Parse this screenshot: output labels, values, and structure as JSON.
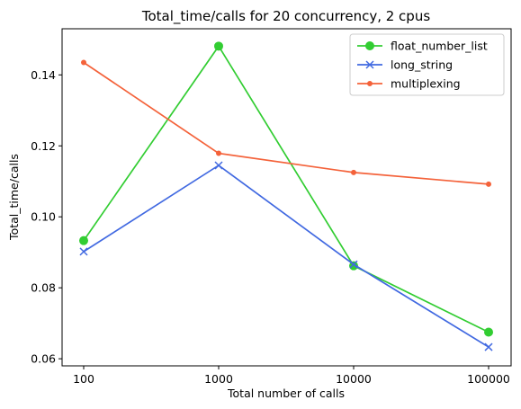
{
  "chart_data": {
    "type": "line",
    "title": "Total_time/calls for 20 concurrency, 2 cpus",
    "xlabel": "Total number of calls",
    "ylabel": "Total_time/calls",
    "categories": [
      "100",
      "1000",
      "10000",
      "100000"
    ],
    "ylim": [
      0.058,
      0.153
    ],
    "yticks": [
      "0.06",
      "0.08",
      "0.10",
      "0.12",
      "0.14"
    ],
    "ytick_values": [
      0.06,
      0.08,
      0.1,
      0.12,
      0.14
    ],
    "grid": false,
    "legend_position": "top-right",
    "series": [
      {
        "name": "float_number_list",
        "color": "#32cd32",
        "marker": "circle",
        "values": [
          0.0933,
          0.1481,
          0.0862,
          0.0675
        ]
      },
      {
        "name": "long_string",
        "color": "#4169e1",
        "marker": "x",
        "values": [
          0.0902,
          0.1145,
          0.0866,
          0.0633
        ]
      },
      {
        "name": "multiplexing",
        "color": "#f4623a",
        "marker": "dot",
        "values": [
          0.1435,
          0.1179,
          0.1125,
          0.1092
        ]
      }
    ]
  }
}
